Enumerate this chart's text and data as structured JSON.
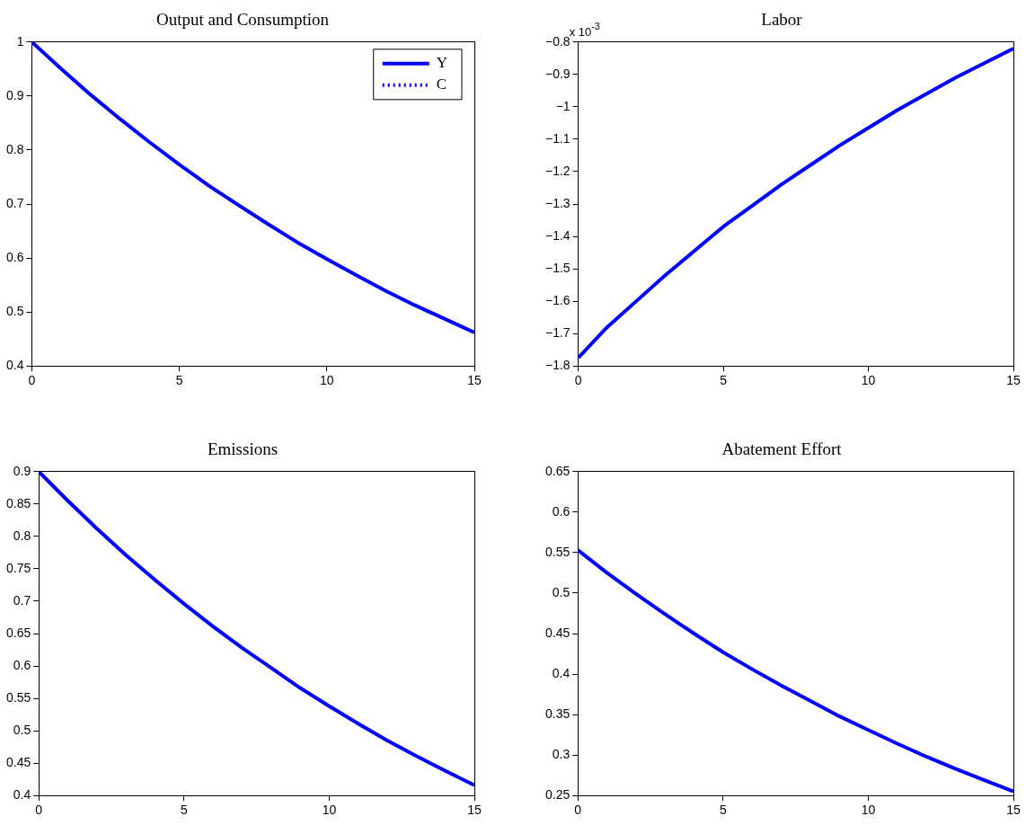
{
  "chart_data": [
    {
      "type": "line",
      "title": "Output and Consumption",
      "x": [
        0,
        1,
        2,
        3,
        4,
        5,
        6,
        7,
        8,
        9,
        10,
        11,
        12,
        13,
        14,
        15
      ],
      "xlim": [
        0,
        15
      ],
      "xticks": [
        0,
        5,
        10,
        15
      ],
      "ylim": [
        0.4,
        1
      ],
      "yticks": [
        0.4,
        0.5,
        0.6,
        0.7,
        0.8,
        0.9,
        1
      ],
      "grid": false,
      "legend": "top right",
      "marker": "none",
      "series": [
        {
          "name": "Y",
          "color": "#0000ff",
          "line_style": "solid",
          "values": [
            1,
            0.95,
            0.902,
            0.857,
            0.814,
            0.773,
            0.734,
            0.698,
            0.663,
            0.629,
            0.598,
            0.568,
            0.539,
            0.512,
            0.487,
            0.462
          ]
        },
        {
          "name": "C",
          "color": "#0000ff",
          "line_style": "dotted",
          "values": [
            null,
            null,
            null,
            null,
            null,
            null,
            null,
            null,
            null,
            null,
            null,
            null,
            null,
            null,
            null,
            null
          ]
        }
      ]
    },
    {
      "type": "line",
      "title": "Labor",
      "annotations": [
        "x 10$^{-3}$"
      ],
      "x": [
        0,
        1,
        2,
        3,
        4,
        5,
        6,
        7,
        8,
        9,
        10,
        11,
        12,
        13,
        14,
        15
      ],
      "xlim": [
        0,
        15
      ],
      "xticks": [
        0,
        5,
        10,
        15
      ],
      "ylim": [
        -1.8,
        -0.8
      ],
      "yticks": [
        -1.8,
        -1.7,
        -1.6,
        -1.5,
        -1.4,
        -1.3,
        -1.2,
        -1.1,
        -1,
        -0.9,
        -0.8
      ],
      "grid": false,
      "legend": false,
      "marker": "none",
      "series": [
        {
          "color": "#0000ff",
          "line_style": "solid",
          "values": [
            -1.775,
            -1.68,
            -1.6,
            -1.52,
            -1.445,
            -1.37,
            -1.305,
            -1.24,
            -1.18,
            -1.12,
            -1.065,
            -1.01,
            -0.96,
            -0.91,
            -0.865,
            -0.82
          ]
        }
      ]
    },
    {
      "type": "line",
      "title": "Emissions",
      "x": [
        0,
        1,
        2,
        3,
        4,
        5,
        6,
        7,
        8,
        9,
        10,
        11,
        12,
        13,
        14,
        15
      ],
      "xlim": [
        0,
        15
      ],
      "xticks": [
        0,
        5,
        10,
        15
      ],
      "ylim": [
        0.4,
        0.9
      ],
      "yticks": [
        0.4,
        0.45,
        0.5,
        0.55,
        0.6,
        0.65,
        0.7,
        0.75,
        0.8,
        0.85,
        0.9
      ],
      "grid": false,
      "legend": false,
      "marker": "none",
      "series": [
        {
          "color": "#0000ff",
          "line_style": "solid",
          "values": [
            0.9,
            0.855,
            0.812,
            0.771,
            0.733,
            0.696,
            0.661,
            0.628,
            0.597,
            0.566,
            0.538,
            0.511,
            0.485,
            0.461,
            0.438,
            0.416
          ]
        }
      ]
    },
    {
      "type": "line",
      "title": "Abatement Effort",
      "x": [
        0,
        1,
        2,
        3,
        4,
        5,
        6,
        7,
        8,
        9,
        10,
        11,
        12,
        13,
        14,
        15
      ],
      "xlim": [
        0,
        15
      ],
      "xticks": [
        0,
        5,
        10,
        15
      ],
      "ylim": [
        0.25,
        0.65
      ],
      "yticks": [
        0.25,
        0.3,
        0.35,
        0.4,
        0.45,
        0.5,
        0.55,
        0.6,
        0.65
      ],
      "grid": false,
      "legend": false,
      "marker": "none",
      "series": [
        {
          "color": "#0000ff",
          "line_style": "solid",
          "values": [
            0.553,
            0.525,
            0.499,
            0.474,
            0.45,
            0.427,
            0.406,
            0.386,
            0.367,
            0.348,
            0.331,
            0.314,
            0.298,
            0.283,
            0.269,
            0.255
          ]
        }
      ]
    }
  ]
}
